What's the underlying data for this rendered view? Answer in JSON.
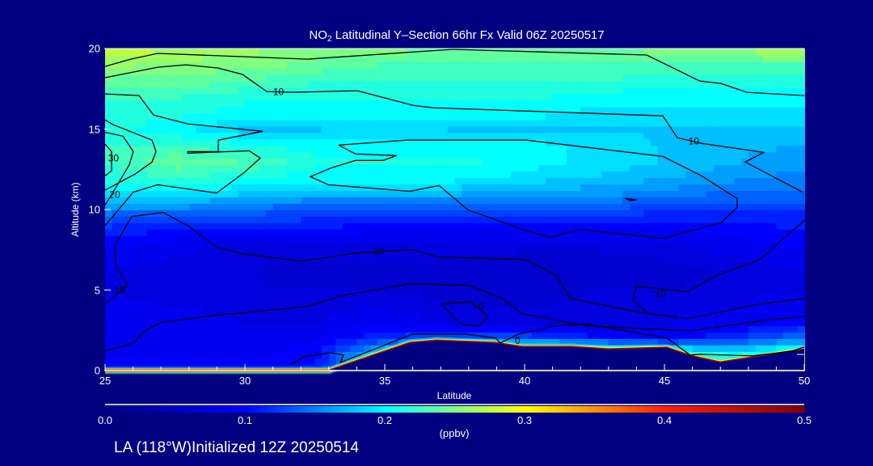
{
  "chart_data": {
    "type": "heatmap",
    "title_prefix": "NO",
    "title_subscript": "2",
    "title_rest": " Latitudinal Y–Section 66hr  Fx Valid 06Z 20250517",
    "xlabel": "Latitude",
    "ylabel": "Altitude (km)",
    "xlim": [
      25,
      50
    ],
    "ylim": [
      0,
      20
    ],
    "x_ticks": [
      "25",
      "30",
      "35",
      "40",
      "45",
      "50"
    ],
    "x_tick_values": [
      25,
      30,
      35,
      40,
      45,
      50
    ],
    "y_ticks": [
      "0",
      "5",
      "10",
      "15",
      "20"
    ],
    "y_tick_values": [
      0,
      5,
      10,
      15,
      20
    ],
    "grid_lat": [
      25,
      27.5,
      30,
      32.5,
      35,
      37.5,
      40,
      42.5,
      45,
      47.5,
      50
    ],
    "grid_alt": [
      0,
      1,
      2,
      3,
      4,
      5,
      6,
      7,
      8,
      9,
      10,
      11,
      12,
      13,
      14,
      15,
      16,
      17,
      18,
      19,
      20
    ],
    "values_ppbv": [
      [
        0.1,
        0.1,
        0.1,
        0.11,
        0.2,
        0.3,
        0.3,
        0.3,
        0.3,
        0.3,
        0.3
      ],
      [
        0.09,
        0.09,
        0.09,
        0.1,
        0.2,
        0.3,
        0.3,
        0.3,
        0.25,
        0.2,
        0.25
      ],
      [
        0.09,
        0.09,
        0.09,
        0.09,
        0.12,
        0.14,
        0.13,
        0.11,
        0.1,
        0.12,
        0.15
      ],
      [
        0.09,
        0.09,
        0.08,
        0.08,
        0.09,
        0.08,
        0.08,
        0.08,
        0.08,
        0.09,
        0.1
      ],
      [
        0.09,
        0.08,
        0.08,
        0.08,
        0.08,
        0.07,
        0.07,
        0.07,
        0.08,
        0.08,
        0.09
      ],
      [
        0.08,
        0.07,
        0.07,
        0.07,
        0.07,
        0.06,
        0.06,
        0.07,
        0.07,
        0.08,
        0.08
      ],
      [
        0.08,
        0.07,
        0.07,
        0.06,
        0.06,
        0.06,
        0.06,
        0.06,
        0.06,
        0.07,
        0.08
      ],
      [
        0.09,
        0.08,
        0.07,
        0.07,
        0.07,
        0.07,
        0.06,
        0.06,
        0.07,
        0.08,
        0.09
      ],
      [
        0.1,
        0.09,
        0.08,
        0.08,
        0.08,
        0.08,
        0.08,
        0.08,
        0.08,
        0.09,
        0.1
      ],
      [
        0.12,
        0.11,
        0.11,
        0.11,
        0.1,
        0.1,
        0.1,
        0.1,
        0.1,
        0.1,
        0.11
      ],
      [
        0.15,
        0.15,
        0.14,
        0.13,
        0.13,
        0.13,
        0.13,
        0.13,
        0.12,
        0.12,
        0.12
      ],
      [
        0.19,
        0.19,
        0.18,
        0.17,
        0.17,
        0.17,
        0.16,
        0.16,
        0.15,
        0.14,
        0.14
      ],
      [
        0.21,
        0.22,
        0.21,
        0.2,
        0.2,
        0.2,
        0.19,
        0.18,
        0.17,
        0.16,
        0.15
      ],
      [
        0.22,
        0.24,
        0.23,
        0.21,
        0.21,
        0.21,
        0.2,
        0.19,
        0.18,
        0.17,
        0.16
      ],
      [
        0.22,
        0.22,
        0.21,
        0.2,
        0.2,
        0.2,
        0.2,
        0.19,
        0.18,
        0.17,
        0.17
      ],
      [
        0.21,
        0.2,
        0.18,
        0.18,
        0.19,
        0.18,
        0.18,
        0.18,
        0.18,
        0.18,
        0.18
      ],
      [
        0.21,
        0.21,
        0.2,
        0.2,
        0.2,
        0.2,
        0.2,
        0.19,
        0.19,
        0.19,
        0.19
      ],
      [
        0.22,
        0.22,
        0.21,
        0.21,
        0.21,
        0.21,
        0.21,
        0.2,
        0.2,
        0.2,
        0.2
      ],
      [
        0.24,
        0.24,
        0.23,
        0.22,
        0.22,
        0.22,
        0.22,
        0.22,
        0.21,
        0.21,
        0.21
      ],
      [
        0.26,
        0.25,
        0.25,
        0.24,
        0.23,
        0.23,
        0.23,
        0.23,
        0.23,
        0.23,
        0.23
      ],
      [
        0.28,
        0.27,
        0.26,
        0.25,
        0.25,
        0.24,
        0.24,
        0.24,
        0.25,
        0.26,
        0.27
      ]
    ],
    "terrain": [
      [
        25,
        0
      ],
      [
        33,
        0
      ],
      [
        35.9,
        1.71
      ],
      [
        36.85,
        1.86
      ],
      [
        38.96,
        1.71
      ],
      [
        39.91,
        1.46
      ],
      [
        41.68,
        1.46
      ],
      [
        42.98,
        1.31
      ],
      [
        45.09,
        1.41
      ],
      [
        45.92,
        0.91
      ],
      [
        46.99,
        0.5
      ],
      [
        49.83,
        1.26
      ],
      [
        50,
        1.31
      ]
    ],
    "contours": [
      {
        "points": [
          [
            25,
            18.89
          ],
          [
            25.92,
            19.34
          ],
          [
            26.88,
            19.7
          ],
          [
            32.23,
            19.34
          ],
          [
            37.43,
            19.95
          ],
          [
            44.36,
            19.6
          ],
          [
            46.27,
            17.98
          ],
          [
            47.02,
            17.83
          ],
          [
            47.95,
            17.28
          ],
          [
            50,
            17.08
          ]
        ]
      },
      {
        "points": [
          [
            25,
            18.19
          ],
          [
            26.88,
            18.84
          ],
          [
            27.89,
            18.99
          ],
          [
            29.05,
            18.79
          ],
          [
            29.91,
            18.39
          ],
          [
            30.78,
            17.33
          ],
          [
            31.65,
            17.28
          ],
          [
            34.02,
            17.38
          ],
          [
            36.01,
            16.47
          ],
          [
            36.71,
            16.32
          ],
          [
            44.94,
            15.82
          ],
          [
            45.46,
            14.46
          ],
          [
            46.33,
            14.11
          ],
          [
            48.55,
            13.55
          ],
          [
            47.89,
            12.95
          ],
          [
            49.94,
            11.08
          ]
        ]
      },
      {
        "points": [
          [
            25,
            17.18
          ],
          [
            26.21,
            17.08
          ],
          [
            26.73,
            15.87
          ],
          [
            27.95,
            15.32
          ],
          [
            30.64,
            14.86
          ],
          [
            29.05,
            14.31
          ],
          [
            29.05,
            13.6
          ],
          [
            27.95,
            13.6
          ],
          [
            27.95,
            13.5
          ],
          [
            30.15,
            13.65
          ],
          [
            30.55,
            13.2
          ],
          [
            29.97,
            12.29
          ],
          [
            28.99,
            11.03
          ],
          [
            26.88,
            11.54
          ],
          [
            26.01,
            11.08
          ],
          [
            25,
            9.0
          ]
        ]
      },
      {
        "points": [
          [
            25,
            15.57
          ],
          [
            25.29,
            15.27
          ],
          [
            26.68,
            14.31
          ],
          [
            26.82,
            13.6
          ],
          [
            26.68,
            12.95
          ],
          [
            26.07,
            12.2
          ],
          [
            25,
            11.2
          ]
        ]
      },
      {
        "points": [
          [
            25,
            14.8
          ],
          [
            25.64,
            14.56
          ],
          [
            26.01,
            13.6
          ],
          [
            25.87,
            12.8
          ],
          [
            25.29,
            11.08
          ],
          [
            25,
            10.28
          ]
        ]
      },
      {
        "points": [
          [
            25,
            14.06
          ],
          [
            25.23,
            13.6
          ],
          [
            25.23,
            12.4
          ],
          [
            25,
            12.09
          ]
        ]
      },
      {
        "points": [
          [
            33.35,
            14.0
          ],
          [
            33.96,
            13.45
          ],
          [
            35.43,
            13.35
          ],
          [
            34.94,
            13.05
          ],
          [
            33.96,
            13.05
          ],
          [
            33.09,
            12.59
          ],
          [
            32.34,
            12.04
          ],
          [
            32.98,
            11.54
          ],
          [
            35.9,
            11.13
          ],
          [
            36.94,
            11.49
          ],
          [
            37.98,
            9.97
          ],
          [
            39.94,
            8.77
          ],
          [
            40.92,
            8.26
          ],
          [
            41.94,
            8.77
          ],
          [
            44.94,
            8.21
          ],
          [
            47.02,
            9.17
          ],
          [
            47.6,
            10.13
          ],
          [
            47.6,
            10.68
          ],
          [
            46.33,
            12.09
          ],
          [
            44.94,
            13.3
          ],
          [
            40.06,
            14.31
          ],
          [
            35.78,
            14.31
          ],
          [
            33.35,
            14.0
          ]
        ]
      },
      {
        "points": [
          [
            43.6,
            10.7
          ],
          [
            44.0,
            10.6
          ],
          [
            43.8,
            10.55
          ],
          [
            43.6,
            10.7
          ]
        ]
      },
      {
        "points": [
          [
            25,
            4.13
          ],
          [
            25.81,
            5.29
          ],
          [
            25.38,
            6.55
          ],
          [
            25.35,
            7.76
          ],
          [
            25.95,
            9.57
          ],
          [
            27.08,
            9.82
          ],
          [
            27.98,
            8.97
          ],
          [
            28.99,
            7.66
          ],
          [
            29.91,
            7.25
          ],
          [
            32.02,
            6.8
          ],
          [
            34.02,
            7.3
          ],
          [
            36.01,
            7.51
          ],
          [
            36.94,
            7.05
          ],
          [
            40.03,
            6.9
          ],
          [
            41.16,
            5.89
          ],
          [
            41.62,
            4.48
          ],
          [
            44.08,
            3.63
          ],
          [
            45.81,
            3.22
          ],
          [
            48.41,
            4.13
          ],
          [
            50,
            4.48
          ]
        ]
      },
      {
        "points": [
          [
            50,
            9.32
          ],
          [
            48.41,
            6.9
          ],
          [
            46.85,
            5.89
          ],
          [
            45.81,
            4.89
          ],
          [
            44.0,
            5.24
          ],
          [
            43.87,
            4.38
          ],
          [
            44.36,
            3.63
          ]
        ]
      },
      {
        "points": [
          [
            25,
            1.21
          ],
          [
            26.01,
            1.71
          ],
          [
            26.36,
            2.37
          ],
          [
            26.97,
            2.97
          ],
          [
            28.67,
            3.38
          ],
          [
            32.23,
            3.98
          ],
          [
            33.41,
            4.63
          ],
          [
            35.9,
            5.39
          ],
          [
            38.01,
            5.29
          ],
          [
            39.19,
            4.48
          ],
          [
            39.91,
            3.53
          ],
          [
            42.25,
            2.77
          ],
          [
            45.92,
            2.47
          ],
          [
            48.53,
            3.1
          ],
          [
            50,
            3.38
          ]
        ]
      },
      {
        "points": [
          [
            37.02,
            4.13
          ],
          [
            38.06,
            4.28
          ],
          [
            38.7,
            3.38
          ],
          [
            38.38,
            2.77
          ],
          [
            37.72,
            2.87
          ],
          [
            37.02,
            4.13
          ]
        ]
      },
      {
        "points": [
          [
            31.65,
            0.4
          ],
          [
            32.11,
            0.86
          ],
          [
            33.06,
            1.11
          ],
          [
            33.53,
            0.96
          ],
          [
            33.41,
            0.5
          ],
          [
            36.01,
            2.27
          ],
          [
            37.89,
            2.27
          ],
          [
            38.96,
            2.02
          ],
          [
            39.13,
            1.71
          ],
          [
            39.8,
            2.27
          ],
          [
            41.1,
            2.77
          ],
          [
            42.25,
            2.87
          ],
          [
            45.09,
            2.02
          ],
          [
            45.92,
            0.96
          ],
          [
            46.27,
            1.01
          ],
          [
            48.15,
            0.91
          ],
          [
            49.57,
            1.21
          ],
          [
            50,
            1.46
          ]
        ]
      }
    ],
    "contour_labels": [
      {
        "text": "10",
        "lat": 31.2,
        "alt": 17.3
      },
      {
        "text": "10",
        "lat": 46.05,
        "alt": 14.25
      },
      {
        "text": "30",
        "lat": 25.3,
        "alt": 13.2
      },
      {
        "text": "20",
        "lat": 25.35,
        "alt": 10.93
      },
      {
        "text": "10",
        "lat": 34.77,
        "alt": 7.4
      },
      {
        "text": "10",
        "lat": 25.52,
        "alt": 4.99
      },
      {
        "text": "10",
        "lat": 44.86,
        "alt": 4.74
      },
      {
        "text": "0",
        "lat": 38.44,
        "alt": 3.98
      },
      {
        "text": "0",
        "lat": 39.75,
        "alt": 1.85
      }
    ],
    "colorbar": {
      "label": "(ppbv)",
      "range": [
        0,
        0.5
      ],
      "tick_labels": [
        "0.0",
        "0.1",
        "0.2",
        "0.3",
        "0.4",
        "0.5"
      ],
      "tick_values": [
        0,
        0.1,
        0.2,
        0.3,
        0.4,
        0.5
      ],
      "stops": [
        [
          0,
          "#000080"
        ],
        [
          0.1,
          "#0000ff"
        ],
        [
          0.2,
          "#00ffff"
        ],
        [
          0.25,
          "#80ff80"
        ],
        [
          0.3,
          "#ffff00"
        ],
        [
          0.4,
          "#ff2000"
        ],
        [
          0.5,
          "#800000"
        ]
      ]
    },
    "colors": {
      "background": "#000080",
      "contour": "#000000",
      "terrain_edge": "#c00000"
    }
  },
  "footer": "LA (118°W)Initialized 12Z 20250514"
}
